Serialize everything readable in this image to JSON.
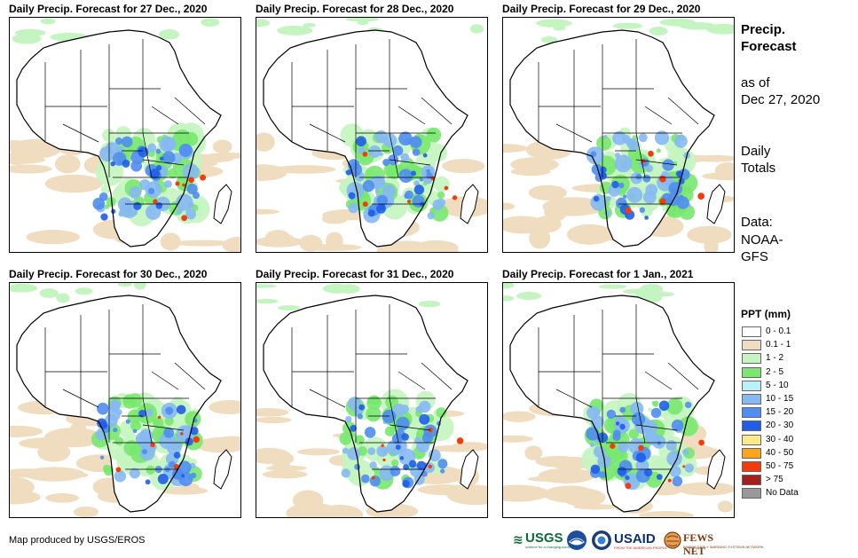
{
  "panels": [
    {
      "title": "Daily Precip. Forecast for 27 Dec., 2020"
    },
    {
      "title": "Daily Precip. Forecast for 28 Dec., 2020"
    },
    {
      "title": "Daily Precip. Forecast for 29 Dec., 2020"
    },
    {
      "title": "Daily Precip. Forecast for 30 Dec., 2020"
    },
    {
      "title": "Daily Precip. Forecast for 31 Dec., 2020"
    },
    {
      "title": "Daily Precip. Forecast for 1 Jan., 2021"
    }
  ],
  "side": {
    "title_line1": "Precip.",
    "title_line2": "Forecast",
    "asof_line1": "as of",
    "asof_line2": "Dec 27, 2020",
    "totals_line1": "Daily",
    "totals_line2": "Totals",
    "data_line1": "Data:",
    "data_line2": "NOAA-",
    "data_line3": "GFS"
  },
  "legend": {
    "title": "PPT (mm)",
    "items": [
      {
        "label": "0 - 0.1",
        "color": "#ffffff"
      },
      {
        "label": "0.1 - 1",
        "color": "#f0dcbf"
      },
      {
        "label": "1 - 2",
        "color": "#c4f5c0"
      },
      {
        "label": "2 - 5",
        "color": "#78e86e"
      },
      {
        "label": "5 - 10",
        "color": "#b8f2f8"
      },
      {
        "label": "10 - 15",
        "color": "#86b9f2"
      },
      {
        "label": "15 - 20",
        "color": "#4f8df0"
      },
      {
        "label": "20 - 30",
        "color": "#1f5ee8"
      },
      {
        "label": "30 - 40",
        "color": "#fbe98a"
      },
      {
        "label": "40 - 50",
        "color": "#f9a51e"
      },
      {
        "label": "50 - 75",
        "color": "#f53b0c"
      },
      {
        "label": "> 75",
        "color": "#a3201f"
      },
      {
        "label": "No Data",
        "color": "#999999"
      }
    ]
  },
  "credit": "Map produced by USGS/EROS",
  "logos": {
    "usgs": "USGS",
    "usgs_tag": "science for a changing world",
    "usaid": "USAID",
    "usaid_tag": "FROM THE AMERICAN PEOPLE",
    "fews": "FEWS NET",
    "fews_tag": "FAMINE EARLY WARNING SYSTEMS NETWORK"
  }
}
